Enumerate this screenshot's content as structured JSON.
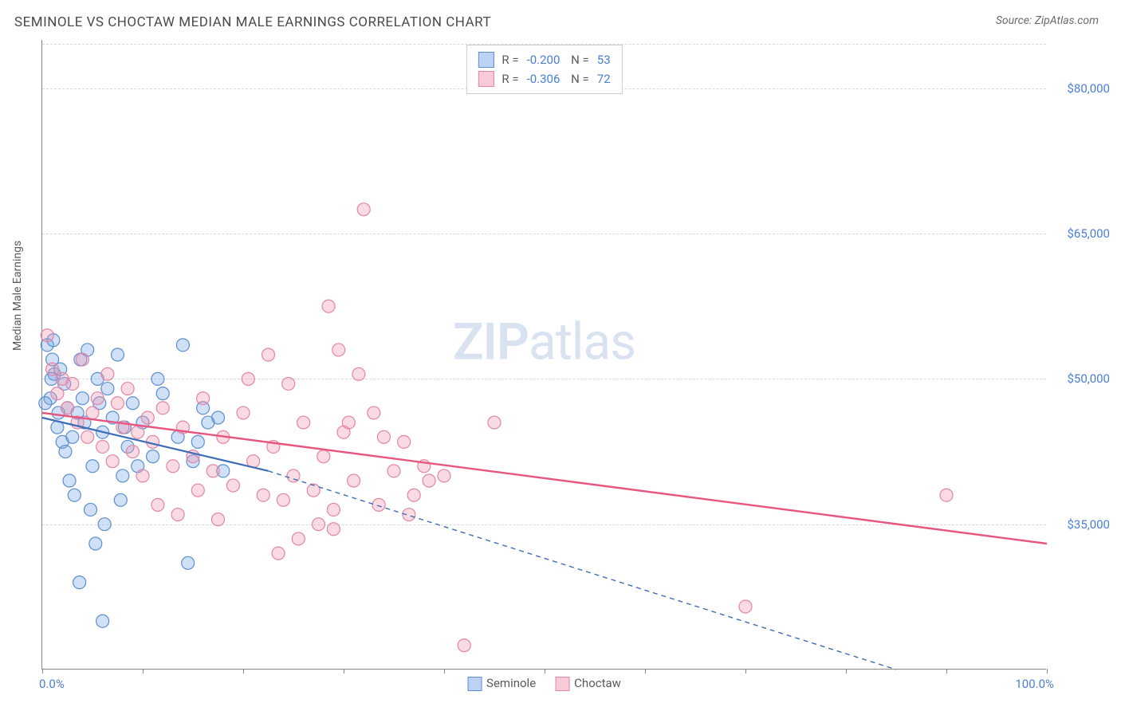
{
  "title": "SEMINOLE VS CHOCTAW MEDIAN MALE EARNINGS CORRELATION CHART",
  "source": "Source: ZipAtlas.com",
  "y_axis_label": "Median Male Earnings",
  "watermark": {
    "bold": "ZIP",
    "light": "atlas"
  },
  "chart": {
    "type": "scatter",
    "background_color": "#ffffff",
    "grid_color": "#d8d8d8",
    "axis_color": "#888888",
    "xlim": [
      0,
      100
    ],
    "ylim": [
      20000,
      85000
    ],
    "y_ticks": [
      35000,
      50000,
      65000,
      80000
    ],
    "y_tick_labels": [
      "$35,000",
      "$50,000",
      "$65,000",
      "$80,000"
    ],
    "x_ticks": [
      0,
      10,
      20,
      30,
      40,
      50,
      60,
      70,
      80,
      90,
      100
    ],
    "x_tick_labels_shown": {
      "0": "0.0%",
      "100": "100.0%"
    },
    "tick_label_color": "#4a7fd8",
    "tick_label_fontsize": 15,
    "point_radius": 8,
    "point_stroke_width": 1.2,
    "series": [
      {
        "name": "Seminole",
        "fill": "rgba(120,165,230,0.35)",
        "stroke": "#5a8fd0",
        "r_value": "-0.200",
        "n_value": "53",
        "regression": {
          "x1": 0,
          "y1": 46000,
          "x2": 22.5,
          "y2": 40500,
          "solid_until_x": 22.5,
          "extend_to_x": 85,
          "extend_y_at_end": 20000,
          "color": "#3e6db5",
          "width": 2.2,
          "dash": "6 5"
        },
        "points": [
          [
            0.5,
            53500
          ],
          [
            0.8,
            48000
          ],
          [
            1.2,
            50500
          ],
          [
            1.0,
            52000
          ],
          [
            1.5,
            45000
          ],
          [
            2.0,
            43500
          ],
          [
            2.5,
            47000
          ],
          [
            1.8,
            51000
          ],
          [
            2.2,
            49500
          ],
          [
            3.0,
            44000
          ],
          [
            3.5,
            46500
          ],
          [
            4.0,
            48000
          ],
          [
            4.5,
            53000
          ],
          [
            5.0,
            41000
          ],
          [
            5.5,
            50000
          ],
          [
            6.0,
            44500
          ],
          [
            6.5,
            49000
          ],
          [
            7.0,
            46000
          ],
          [
            7.5,
            52500
          ],
          [
            8.0,
            40000
          ],
          [
            3.2,
            38000
          ],
          [
            4.8,
            36500
          ],
          [
            2.7,
            39500
          ],
          [
            6.2,
            35000
          ],
          [
            7.8,
            37500
          ],
          [
            5.3,
            33000
          ],
          [
            3.7,
            29000
          ],
          [
            8.5,
            43000
          ],
          [
            9.0,
            47500
          ],
          [
            10.0,
            45500
          ],
          [
            11.0,
            42000
          ],
          [
            12.0,
            48500
          ],
          [
            13.5,
            44000
          ],
          [
            14.0,
            53500
          ],
          [
            15.0,
            41500
          ],
          [
            16.0,
            47000
          ],
          [
            17.5,
            46000
          ],
          [
            18.0,
            40500
          ],
          [
            14.5,
            31000
          ],
          [
            6.0,
            25000
          ],
          [
            0.3,
            47500
          ],
          [
            1.1,
            54000
          ],
          [
            2.3,
            42500
          ],
          [
            3.8,
            52000
          ],
          [
            4.2,
            45500
          ],
          [
            1.6,
            46500
          ],
          [
            0.9,
            50000
          ],
          [
            5.7,
            47500
          ],
          [
            8.2,
            45000
          ],
          [
            9.5,
            41000
          ],
          [
            11.5,
            50000
          ],
          [
            15.5,
            43500
          ],
          [
            16.5,
            45500
          ]
        ]
      },
      {
        "name": "Choctaw",
        "fill": "rgba(240,150,175,0.35)",
        "stroke": "#e385a5",
        "r_value": "-0.306",
        "n_value": "72",
        "regression": {
          "x1": 0,
          "y1": 46500,
          "x2": 100,
          "y2": 33000,
          "color": "#e8557e",
          "width": 2.4
        },
        "points": [
          [
            0.5,
            54500
          ],
          [
            1.0,
            51000
          ],
          [
            1.5,
            48500
          ],
          [
            2.0,
            50000
          ],
          [
            2.5,
            47000
          ],
          [
            3.0,
            49500
          ],
          [
            3.5,
            45500
          ],
          [
            4.0,
            52000
          ],
          [
            4.5,
            44000
          ],
          [
            5.0,
            46500
          ],
          [
            5.5,
            48000
          ],
          [
            6.0,
            43000
          ],
          [
            6.5,
            50500
          ],
          [
            7.0,
            41500
          ],
          [
            7.5,
            47500
          ],
          [
            8.0,
            45000
          ],
          [
            8.5,
            49000
          ],
          [
            9.0,
            42500
          ],
          [
            9.5,
            44500
          ],
          [
            10.0,
            40000
          ],
          [
            10.5,
            46000
          ],
          [
            11.0,
            43500
          ],
          [
            12.0,
            47000
          ],
          [
            13.0,
            41000
          ],
          [
            14.0,
            45000
          ],
          [
            15.0,
            42000
          ],
          [
            16.0,
            48000
          ],
          [
            17.0,
            40500
          ],
          [
            18.0,
            44000
          ],
          [
            19.0,
            39000
          ],
          [
            20.0,
            46500
          ],
          [
            21.0,
            41500
          ],
          [
            22.0,
            38000
          ],
          [
            23.0,
            43000
          ],
          [
            24.0,
            37500
          ],
          [
            25.0,
            40000
          ],
          [
            26.0,
            45500
          ],
          [
            27.0,
            38500
          ],
          [
            28.0,
            42000
          ],
          [
            29.0,
            36500
          ],
          [
            30.0,
            44500
          ],
          [
            31.0,
            39500
          ],
          [
            20.5,
            50000
          ],
          [
            22.5,
            52500
          ],
          [
            24.5,
            49500
          ],
          [
            28.5,
            57500
          ],
          [
            29.5,
            53000
          ],
          [
            31.5,
            50500
          ],
          [
            32.0,
            67500
          ],
          [
            30.5,
            45500
          ],
          [
            33.0,
            46500
          ],
          [
            34.0,
            44000
          ],
          [
            35.0,
            40500
          ],
          [
            36.0,
            43500
          ],
          [
            37.0,
            38000
          ],
          [
            38.0,
            41000
          ],
          [
            27.5,
            35000
          ],
          [
            25.5,
            33500
          ],
          [
            23.5,
            32000
          ],
          [
            29.0,
            34500
          ],
          [
            33.5,
            37000
          ],
          [
            36.5,
            36000
          ],
          [
            38.5,
            39500
          ],
          [
            40.0,
            40000
          ],
          [
            42.0,
            22500
          ],
          [
            45.0,
            45500
          ],
          [
            70.0,
            26500
          ],
          [
            90.0,
            38000
          ],
          [
            11.5,
            37000
          ],
          [
            13.5,
            36000
          ],
          [
            15.5,
            38500
          ],
          [
            17.5,
            35500
          ]
        ]
      }
    ]
  },
  "legend_bottom": [
    {
      "label": "Seminole",
      "fill": "rgba(120,165,230,0.5)",
      "stroke": "#5a8fd0"
    },
    {
      "label": "Choctaw",
      "fill": "rgba(240,150,175,0.5)",
      "stroke": "#e385a5"
    }
  ]
}
